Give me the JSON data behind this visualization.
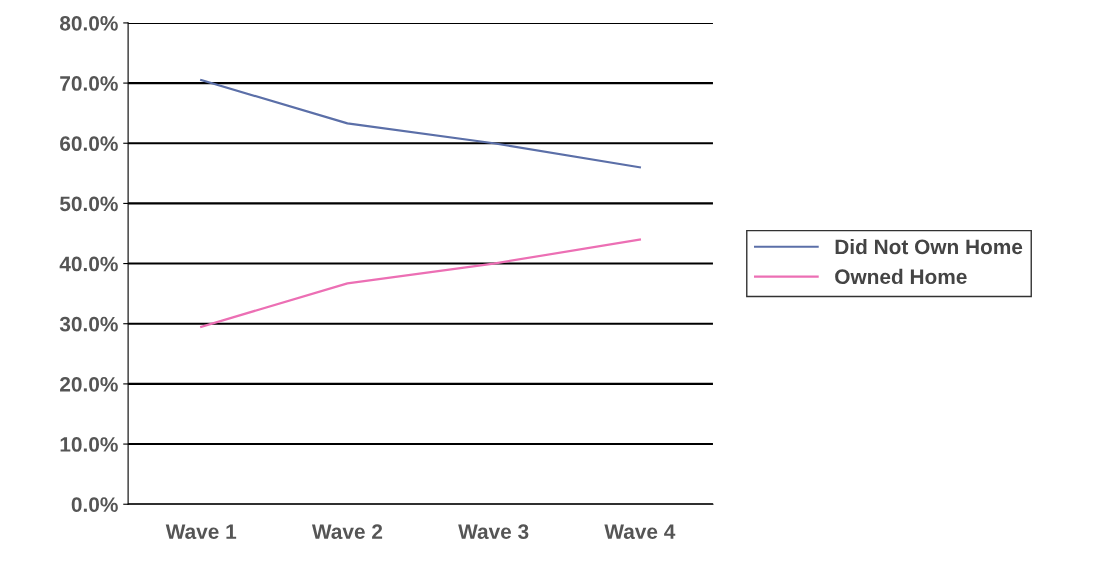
{
  "chart_data": {
    "type": "line",
    "categories": [
      "Wave 1",
      "Wave 2",
      "Wave 3",
      "Wave 4"
    ],
    "series": [
      {
        "name": "Did Not Own Home",
        "color": "#5b6fa8",
        "values": [
          0.705,
          0.633,
          0.6,
          0.56
        ]
      },
      {
        "name": "Owned Home",
        "color": "#ec6fb4",
        "values": [
          0.295,
          0.367,
          0.4,
          0.44
        ]
      }
    ],
    "ylim": [
      0,
      0.8
    ],
    "yticks": [
      {
        "value": 0,
        "label": "0.0%"
      },
      {
        "value": 0.1,
        "label": "10.0%"
      },
      {
        "value": 0.2,
        "label": "20.0%"
      },
      {
        "value": 0.3,
        "label": "30.0%"
      },
      {
        "value": 0.4,
        "label": "40.0%"
      },
      {
        "value": 0.5,
        "label": "50.0%"
      },
      {
        "value": 0.6,
        "label": "60.0%"
      },
      {
        "value": 0.7,
        "label": "70.0%"
      },
      {
        "value": 0.8,
        "label": "80.0%"
      }
    ],
    "grid": "y",
    "legend": "right",
    "marker": "none",
    "line_style": "solid"
  }
}
